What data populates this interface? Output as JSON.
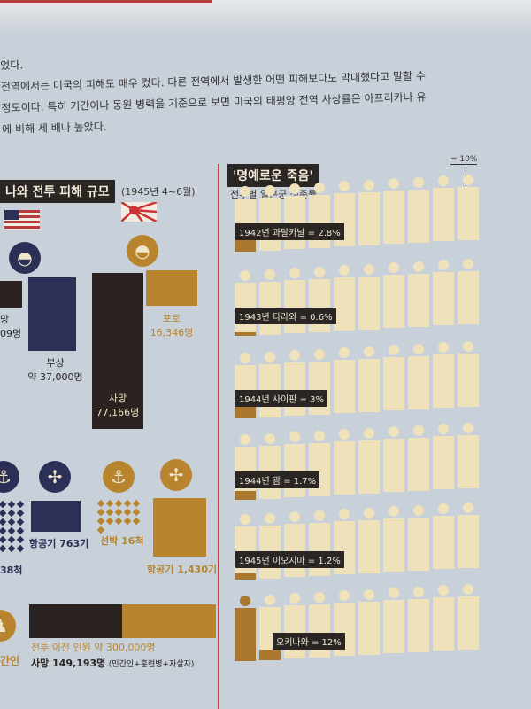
{
  "paragraph": {
    "lines": [
      "었다.",
      "전역에서는 미국의 피해도 매우 컸다. 다른 전역에서 발생한 어떤 피해보다도 막대했다고 말할 수",
      "정도이다. 특히 기간이나 동원 병력을 기준으로 보면 미국의 태평양 전역 사상률은 아프리카나 유",
      "에 비해 세 배나 높았다."
    ]
  },
  "left": {
    "title": "나와 전투 피해 규모",
    "period": "(1945년 4~6월)",
    "us": {
      "dead_label": "망",
      "dead_value": "09명",
      "wounded_label": "부상",
      "wounded_value": "약 37,000명",
      "ships": "38척",
      "aircraft": "항공기 763기"
    },
    "japan": {
      "dead_label": "사망",
      "dead_value": "77,166명",
      "pow_label": "포로",
      "pow_value": "16,346명",
      "ships": "선박 16척",
      "aircraft": "항공기 1,430기"
    },
    "civilian": {
      "label": "간인",
      "pre_battle": "전투 이전 인원 약 300,000명",
      "deaths": "사망 149,193명",
      "deaths_note": "(민간인+훈련병+자살자)"
    },
    "colors": {
      "us": "#2c3056",
      "japan": "#b8852e",
      "dead": "#2a2322"
    }
  },
  "right": {
    "title": "'명예로운 죽음'",
    "subtitle": "전투별 일본군 생존률",
    "legend": "= 10%",
    "rows": [
      {
        "label": "1942년 과달카날 = 2.8%",
        "value": 2.8
      },
      {
        "label": "1943년 타라와 = 0.6%",
        "value": 0.6
      },
      {
        "label": "1944년 사이판 = 3%",
        "value": 3
      },
      {
        "label": "1944년 괌 = 1.7%",
        "value": 1.7
      },
      {
        "label": "1945년 이오지마 = 1.2%",
        "value": 1.2
      },
      {
        "label": "오키나와 = 12%",
        "value": 12
      }
    ]
  }
}
